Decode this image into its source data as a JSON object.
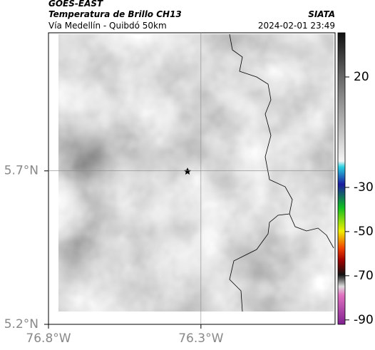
{
  "header": {
    "source": "GOES-EAST",
    "title": "Temperatura de Brillo CH13",
    "subtitle": "Vía Medellín - Quibdó 50km",
    "credit": "SIATA",
    "datetime": "2024-02-01 23:49"
  },
  "map": {
    "ylim": [
      5.2,
      6.15
    ],
    "xlim": [
      -76.8,
      -75.86
    ],
    "yticks": [
      {
        "value": 5.7,
        "label": "5.7°N"
      },
      {
        "value": 5.2,
        "label": "5.2°N"
      }
    ],
    "xticks": [
      {
        "value": -76.8,
        "label": "76.8°W"
      },
      {
        "value": -76.3,
        "label": "76.3°W"
      }
    ],
    "grid": true
  },
  "colorbar": {
    "lim": [
      40,
      -92
    ],
    "ticks": [
      20,
      -30,
      -50,
      -70,
      -90
    ]
  }
}
